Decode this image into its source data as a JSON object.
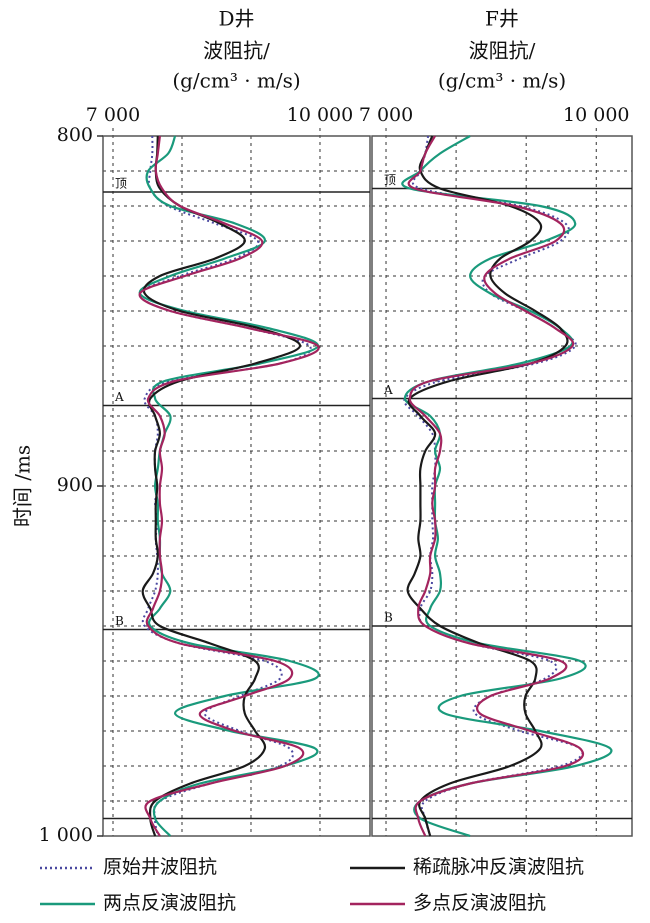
{
  "chart_data": [
    {
      "type": "line",
      "title": "D井",
      "xlabel": [
        "波阻抗/",
        "(g/cm³ · m/s)"
      ],
      "ylabel": "时间 /ms",
      "xlim": [
        6855,
        10725
      ],
      "ylim": [
        800,
        1000
      ],
      "xticks": [
        {
          "value": 7000,
          "label": "7 000"
        },
        {
          "value": 10000,
          "label": "10 000"
        }
      ],
      "yticks": [
        800,
        900,
        {
          "value": 1000,
          "label": "1 000"
        }
      ],
      "xgrid": [
        8000,
        9000
      ],
      "ygrid": [
        810,
        820,
        830,
        840,
        850,
        860,
        870,
        880,
        890,
        900,
        910,
        920,
        930,
        940,
        950,
        960,
        970,
        980,
        990
      ],
      "horizons": [
        {
          "label": "顶",
          "value": 816
        },
        {
          "label": "A",
          "value": 877
        },
        {
          "label": "B",
          "value": 941
        },
        {
          "value": 995
        }
      ],
      "y": [
        800,
        805,
        810,
        815,
        820,
        825,
        830,
        835,
        840,
        845,
        850,
        855,
        860,
        865,
        870,
        875,
        880,
        885,
        890,
        895,
        900,
        905,
        910,
        915,
        920,
        925,
        930,
        935,
        940,
        945,
        950,
        955,
        960,
        965,
        970,
        975,
        980,
        985,
        990,
        995,
        1000
      ],
      "series": [
        {
          "name": "原始井波阻抗",
          "color": "#4a48a0",
          "style": "dotted",
          "values": [
            7570,
            7570,
            7540,
            7540,
            7800,
            8480,
            9100,
            8770,
            7970,
            7390,
            7830,
            8990,
            9850,
            9420,
            7830,
            7460,
            7610,
            7650,
            7610,
            7610,
            7640,
            7610,
            7640,
            7620,
            7640,
            7650,
            7610,
            7510,
            7460,
            7970,
            9200,
            9420,
            8840,
            8330,
            8840,
            9560,
            9420,
            8410,
            7680,
            7610,
            7650
          ]
        },
        {
          "name": "两点反演波阻抗",
          "color": "#1a9a7c",
          "style": "solid",
          "values": [
            7900,
            7800,
            7510,
            7540,
            7830,
            8770,
            9200,
            8620,
            7830,
            7390,
            8040,
            9270,
            9970,
            9130,
            7750,
            7610,
            7830,
            7750,
            7680,
            7650,
            7610,
            7650,
            7650,
            7680,
            7680,
            7710,
            7830,
            7680,
            7540,
            8120,
            9560,
            9930,
            8620,
            7900,
            8700,
            9930,
            9490,
            8260,
            7680,
            7610,
            7830
          ]
        },
        {
          "name": "稀疏脉冲反演波阻抗",
          "color": "#1a1a1a",
          "style": "solid",
          "values": [
            7650,
            7640,
            7620,
            7680,
            7970,
            8550,
            8910,
            8480,
            7680,
            7460,
            7970,
            9130,
            9710,
            9060,
            7970,
            7540,
            7610,
            7680,
            7610,
            7610,
            7640,
            7620,
            7620,
            7620,
            7650,
            7580,
            7430,
            7540,
            7680,
            8410,
            9060,
            9060,
            8910,
            8910,
            9060,
            9200,
            8910,
            8120,
            7610,
            7540,
            7610
          ]
        },
        {
          "name": "多点反演波阻抗",
          "color": "#a3245e",
          "style": "solid",
          "values": [
            7680,
            7650,
            7620,
            7710,
            7970,
            8620,
            9160,
            8840,
            8040,
            7390,
            7830,
            8990,
            9970,
            9420,
            7900,
            7510,
            7680,
            7750,
            7680,
            7710,
            7680,
            7680,
            7710,
            7680,
            7680,
            7710,
            7680,
            7580,
            7510,
            7970,
            9350,
            9560,
            8910,
            8260,
            8770,
            9710,
            9490,
            8410,
            7540,
            7540,
            7680
          ]
        }
      ]
    },
    {
      "type": "line",
      "title": "F井",
      "xlabel": [
        "波阻抗/",
        "(g/cm³ · m/s)"
      ],
      "xlim": [
        6800,
        10510
      ],
      "ylim": [
        800,
        1000
      ],
      "xticks": [
        {
          "value": 7000,
          "label": "7 000"
        },
        {
          "value": 10000,
          "label": "10 000"
        }
      ],
      "xgrid": [
        8000,
        9000
      ],
      "ygrid": [
        810,
        820,
        830,
        840,
        850,
        860,
        870,
        880,
        890,
        900,
        910,
        920,
        930,
        940,
        950,
        960,
        970,
        980,
        990
      ],
      "horizons": [
        {
          "label": "顶",
          "value": 815
        },
        {
          "label": "A",
          "value": 875
        },
        {
          "label": "B",
          "value": 940
        },
        {
          "value": 995
        }
      ],
      "y": [
        800,
        805,
        810,
        815,
        820,
        825,
        830,
        835,
        840,
        845,
        850,
        855,
        860,
        865,
        870,
        875,
        880,
        885,
        890,
        895,
        900,
        905,
        910,
        915,
        920,
        925,
        930,
        935,
        940,
        945,
        950,
        955,
        960,
        965,
        970,
        975,
        980,
        985,
        990,
        995,
        1000
      ],
      "series": [
        {
          "color": "#4a48a0",
          "style": "dotted",
          "values": [
            7600,
            7560,
            7490,
            7490,
            8910,
            9560,
            9490,
            8910,
            8410,
            8490,
            8990,
            9420,
            9700,
            9130,
            7770,
            7270,
            7460,
            7660,
            7700,
            7700,
            7660,
            7660,
            7660,
            7670,
            7630,
            7660,
            7630,
            7490,
            7560,
            8200,
            9340,
            9270,
            8490,
            8270,
            8910,
            9770,
            9490,
            8200,
            7560,
            7560,
            7630
          ]
        },
        {
          "color": "#1a9a7c",
          "style": "solid",
          "values": [
            8200,
            7770,
            7490,
            7340,
            9200,
            9700,
            9270,
            8490,
            8200,
            8490,
            9060,
            9490,
            9630,
            8910,
            7630,
            7270,
            7630,
            7770,
            7700,
            7770,
            7700,
            7700,
            7700,
            7740,
            7700,
            7770,
            7770,
            7630,
            7630,
            8340,
            9770,
            9490,
            8060,
            7840,
            9200,
            10200,
            9700,
            8200,
            7490,
            7490,
            8200
          ]
        },
        {
          "color": "#1a1a1a",
          "style": "solid",
          "values": [
            7660,
            7560,
            7490,
            7770,
            8770,
            9200,
            9060,
            8630,
            8490,
            8700,
            9130,
            9490,
            9560,
            9060,
            7910,
            7340,
            7490,
            7700,
            7560,
            7490,
            7490,
            7490,
            7490,
            7460,
            7490,
            7410,
            7310,
            7490,
            7770,
            8340,
            9060,
            9130,
            8990,
            8990,
            9130,
            9200,
            8770,
            7910,
            7490,
            7560,
            7630
          ]
        },
        {
          "color": "#a3245e",
          "style": "solid",
          "values": [
            7700,
            7560,
            7490,
            7410,
            8840,
            9490,
            9420,
            8770,
            8410,
            8560,
            8990,
            9420,
            9660,
            9060,
            7630,
            7340,
            7560,
            7770,
            7770,
            7700,
            7700,
            7660,
            7700,
            7700,
            7630,
            7630,
            7560,
            7460,
            7560,
            8200,
            9490,
            9340,
            8490,
            8340,
            9060,
            9770,
            9560,
            8200,
            7490,
            7460,
            7560
          ]
        }
      ]
    }
  ]
}
